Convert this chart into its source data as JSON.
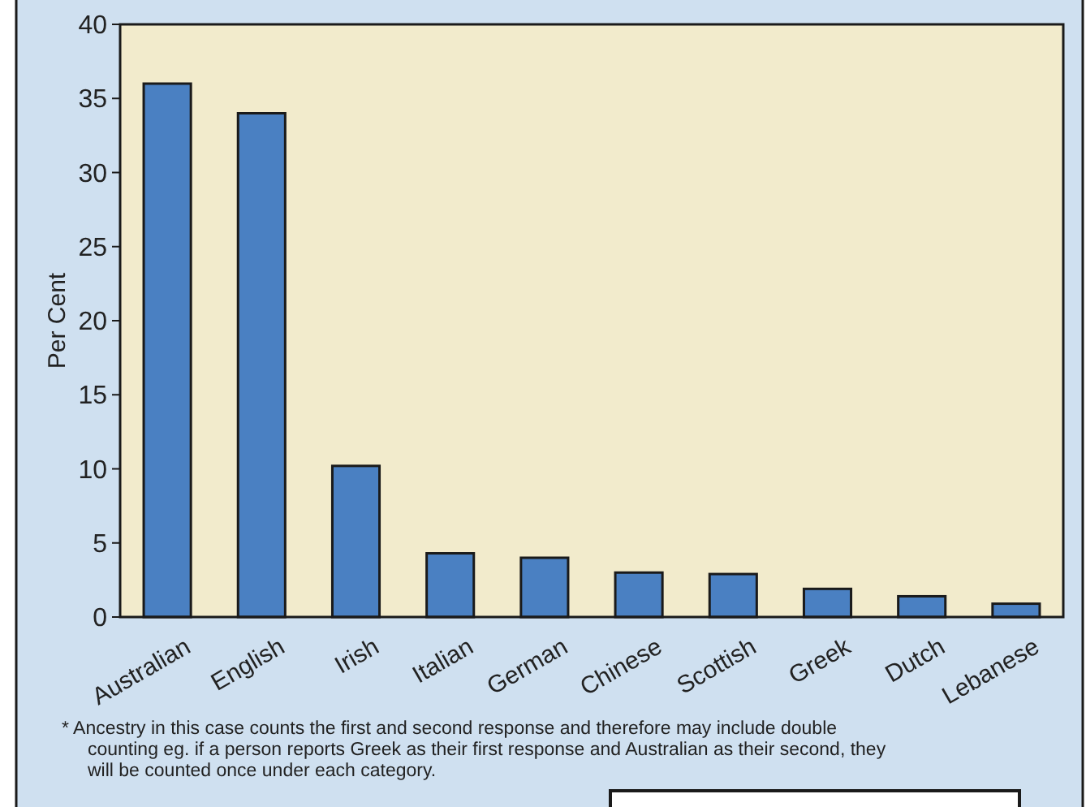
{
  "chart_data": {
    "type": "bar",
    "ylabel": "Per Cent",
    "categories": [
      "Australian",
      "English",
      "Irish",
      "Italian",
      "German",
      "Chinese",
      "Scottish",
      "Greek",
      "Dutch",
      "Lebanese"
    ],
    "values": [
      36.0,
      34.0,
      10.2,
      4.3,
      4.0,
      3.0,
      2.9,
      1.9,
      1.4,
      0.9
    ],
    "color": "#4a80c2",
    "ylim": [
      0,
      40
    ],
    "yticks": [
      0,
      5,
      10,
      15,
      20,
      25,
      30,
      35,
      40
    ],
    "grid": false,
    "annotations": [
      "* Ancestry in this case counts the first and second response and therefore may include double counting eg. if a person reports Greek as their first response and Australian as their second, they will be counted once under each category."
    ]
  }
}
